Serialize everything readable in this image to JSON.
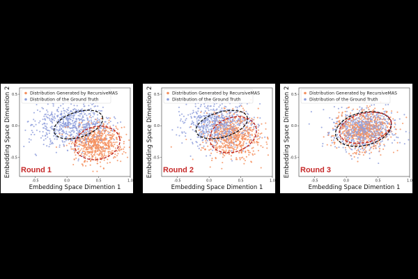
{
  "chart_data": [
    {
      "type": "scatter",
      "title": "Round 1",
      "xlabel": "Embedding Space Dimention 1",
      "ylabel": "Embedding Space Dimention 2",
      "xlim": [
        -0.75,
        1.0
      ],
      "ylim": [
        -0.8,
        0.6
      ],
      "xticks": [
        "-0.5",
        "0.0",
        "0.5",
        "1.0"
      ],
      "yticks": [
        "0.5",
        "0.0",
        "-0.5"
      ],
      "legend_position": "top-left",
      "series": [
        {
          "name": "Distribution Generated by RecursiveMAS",
          "color": "#f4905f",
          "center": [
            0.47,
            -0.27
          ],
          "spread": [
            0.2,
            0.15
          ],
          "count": 650
        },
        {
          "name": "Distribution of the Ground Truth",
          "color": "#8f9fdc",
          "center": [
            0.1,
            0.02
          ],
          "spread": [
            0.3,
            0.17
          ],
          "count": 650
        }
      ],
      "ellipses": [
        {
          "center": [
            0.18,
            0.02
          ],
          "radii": [
            0.4,
            0.2
          ],
          "angle": 18,
          "color": "#111111"
        },
        {
          "center": [
            0.48,
            -0.27
          ],
          "radii": [
            0.36,
            0.26
          ],
          "angle": 12,
          "color": "#b71c1c"
        }
      ]
    },
    {
      "type": "scatter",
      "title": "Round 2",
      "xlabel": "Embedding Space Dimention 1",
      "ylabel": "Embedding Space Dimention 2",
      "xlim": [
        -0.75,
        1.0
      ],
      "ylim": [
        -0.8,
        0.6
      ],
      "xticks": [
        "-0.5",
        "0.0",
        "0.5",
        "1.0"
      ],
      "yticks": [
        "0.5",
        "0.0",
        "-0.5"
      ],
      "legend_position": "top-left",
      "series": [
        {
          "name": "Distribution Generated by RecursiveMAS",
          "color": "#f4905f",
          "center": [
            0.37,
            -0.17
          ],
          "spread": [
            0.22,
            0.18
          ],
          "count": 650
        },
        {
          "name": "Distribution of the Ground Truth",
          "color": "#8f9fdc",
          "center": [
            0.15,
            0.02
          ],
          "spread": [
            0.27,
            0.17
          ],
          "count": 650
        }
      ],
      "ellipses": [
        {
          "center": [
            0.2,
            0.02
          ],
          "radii": [
            0.42,
            0.2
          ],
          "angle": 16,
          "color": "#111111"
        },
        {
          "center": [
            0.38,
            -0.14
          ],
          "radii": [
            0.38,
            0.27
          ],
          "angle": 20,
          "color": "#b71c1c"
        }
      ]
    },
    {
      "type": "scatter",
      "title": "Round 3",
      "xlabel": "Embedding Space Dimention 1",
      "ylabel": "Embedding Space Dimention 2",
      "xlim": [
        -0.75,
        1.0
      ],
      "ylim": [
        -0.8,
        0.6
      ],
      "xticks": [
        "-0.5",
        "0.0",
        "0.5",
        "1.0"
      ],
      "yticks": [
        "0.5",
        "0.0",
        "-0.5"
      ],
      "legend_position": "top-left",
      "series": [
        {
          "name": "Distribution Generated by RecursiveMAS",
          "color": "#f4905f",
          "center": [
            0.27,
            -0.07
          ],
          "spread": [
            0.24,
            0.17
          ],
          "count": 650
        },
        {
          "name": "Distribution of the Ground Truth",
          "color": "#8f9fdc",
          "center": [
            0.26,
            -0.06
          ],
          "spread": [
            0.25,
            0.16
          ],
          "count": 650
        }
      ],
      "ellipses": [
        {
          "center": [
            0.27,
            -0.05
          ],
          "radii": [
            0.45,
            0.26
          ],
          "angle": 14,
          "color": "#111111"
        },
        {
          "center": [
            0.3,
            -0.03
          ],
          "radii": [
            0.42,
            0.23
          ],
          "angle": 14,
          "color": "#b71c1c"
        }
      ]
    }
  ]
}
